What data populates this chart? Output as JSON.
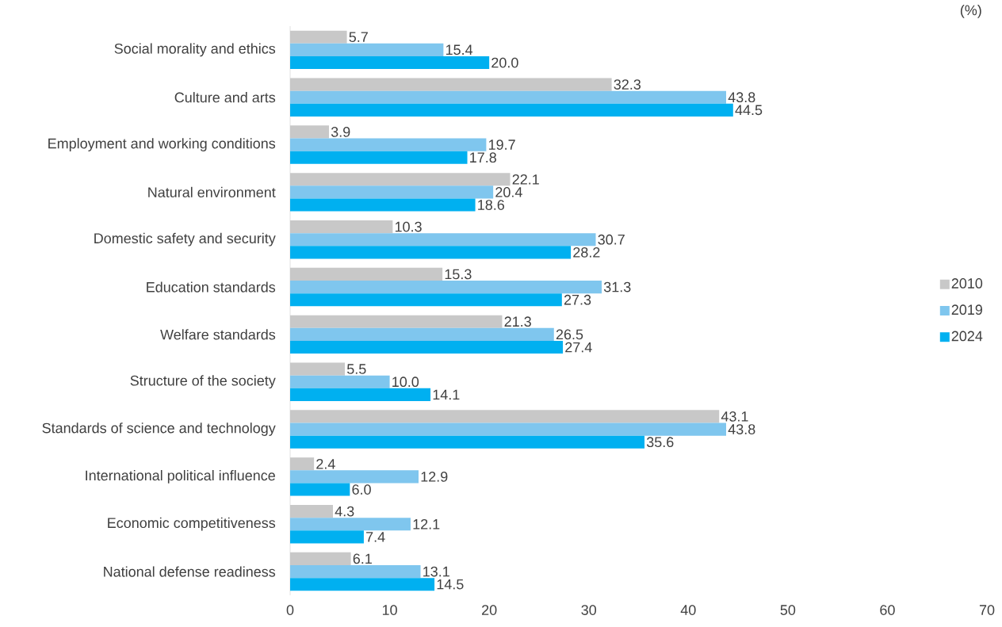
{
  "chart_data": {
    "type": "bar",
    "orientation": "horizontal",
    "categories": [
      "Social morality and ethics",
      "Culture and arts",
      "Employment and working conditions",
      "Natural environment",
      "Domestic safety and security",
      "Education standards",
      "Welfare standards",
      "Structure of the society",
      "Standards of science and technology",
      "International political influence",
      "Economic competitiveness",
      "National defense readiness"
    ],
    "series": [
      {
        "name": "2010",
        "color": "#c8c8c8",
        "values": [
          5.7,
          32.3,
          3.9,
          22.1,
          10.3,
          15.3,
          21.3,
          5.5,
          43.1,
          2.4,
          4.3,
          6.1
        ],
        "value_labels": [
          "5.7",
          "32.3",
          "3.9",
          "22.1",
          "10.3",
          "15.3",
          "21.3",
          "5.5",
          "43.1",
          "2.4",
          "4.3",
          "6.1"
        ]
      },
      {
        "name": "2019",
        "color": "#7fc6ee",
        "values": [
          15.4,
          43.8,
          19.7,
          20.4,
          30.7,
          31.3,
          26.5,
          10.0,
          43.8,
          12.9,
          12.1,
          13.1
        ],
        "value_labels": [
          "15.4",
          "43.8",
          "19.7",
          "20.4",
          "30.7",
          "31.3",
          "26.5",
          "10.0",
          "43.8",
          "12.9",
          "12.1",
          "13.1"
        ]
      },
      {
        "name": "2024",
        "color": "#00b0f0",
        "values": [
          20.0,
          44.5,
          17.8,
          18.6,
          28.2,
          27.3,
          27.4,
          14.1,
          35.6,
          6.0,
          7.4,
          14.5
        ],
        "value_labels": [
          "20.0",
          "44.5",
          "17.8",
          "18.6",
          "28.2",
          "27.3",
          "27.4",
          "14.1",
          "35.6",
          "6.0",
          "7.4",
          "14.5"
        ]
      }
    ],
    "xlim": [
      0,
      70
    ],
    "xticks": [
      0,
      10,
      20,
      30,
      40,
      50,
      60,
      70
    ],
    "legend": "right",
    "annotations": [
      "(%)"
    ]
  }
}
